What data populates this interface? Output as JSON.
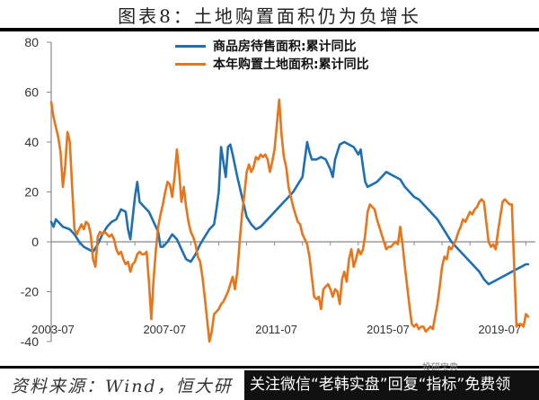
{
  "header": {
    "title": "图表8：土地购置面积仍为负增长"
  },
  "footer": {
    "source": "资料来源：Wind，恒大研",
    "banner": "关注微信“老韩实盘”回复“指标”免费领",
    "watermark": "投研宝典"
  },
  "colors": {
    "blue": "#1f6fb4",
    "orange": "#e8751a",
    "axis": "#888888"
  },
  "chart_data": {
    "type": "line",
    "title": "图表8：土地购置面积仍为负增长",
    "xlabel": "",
    "ylabel": "",
    "ylim": [
      -40,
      80
    ],
    "yticks": [
      80,
      60,
      40,
      20,
      0,
      -20,
      -40
    ],
    "xticks": [
      "2003-07",
      "2007-07",
      "2011-07",
      "2015-07",
      "2019-07"
    ],
    "grid": false,
    "legend_position": "top-center",
    "x_unit": "month index from 2003-07",
    "series": [
      {
        "name": "商品房待售面积:累计同比",
        "color": "#1f6fb4",
        "points": [
          [
            0,
            8
          ],
          [
            1,
            6
          ],
          [
            2,
            9
          ],
          [
            3,
            8
          ],
          [
            5,
            6
          ],
          [
            8,
            5
          ],
          [
            10,
            3
          ],
          [
            12,
            0
          ],
          [
            14,
            -2
          ],
          [
            16,
            -3
          ],
          [
            18,
            -4
          ],
          [
            20,
            -1
          ],
          [
            22,
            3
          ],
          [
            24,
            6
          ],
          [
            26,
            8
          ],
          [
            28,
            9
          ],
          [
            30,
            13
          ],
          [
            32,
            12
          ],
          [
            33,
            5
          ],
          [
            34,
            1
          ],
          [
            36,
            18
          ],
          [
            37,
            24
          ],
          [
            38,
            16
          ],
          [
            40,
            14
          ],
          [
            42,
            12
          ],
          [
            44,
            8
          ],
          [
            46,
            4
          ],
          [
            47,
            -2
          ],
          [
            48,
            -2
          ],
          [
            50,
            0
          ],
          [
            52,
            3
          ],
          [
            54,
            1
          ],
          [
            56,
            -3
          ],
          [
            58,
            -7
          ],
          [
            60,
            -8
          ],
          [
            62,
            -5
          ],
          [
            64,
            -1
          ],
          [
            66,
            2
          ],
          [
            68,
            5
          ],
          [
            70,
            7
          ],
          [
            71,
            13
          ],
          [
            72,
            20
          ],
          [
            73,
            38
          ],
          [
            74,
            32
          ],
          [
            75,
            26
          ],
          [
            76,
            38
          ],
          [
            77,
            39
          ],
          [
            78,
            35
          ],
          [
            80,
            26
          ],
          [
            82,
            18
          ],
          [
            84,
            10
          ],
          [
            86,
            7
          ],
          [
            88,
            5
          ],
          [
            90,
            6
          ],
          [
            92,
            8
          ],
          [
            94,
            10
          ],
          [
            96,
            12
          ],
          [
            98,
            14
          ],
          [
            100,
            16
          ],
          [
            102,
            18
          ],
          [
            104,
            20
          ],
          [
            106,
            23
          ],
          [
            108,
            26
          ],
          [
            109,
            33
          ],
          [
            110,
            40
          ],
          [
            111,
            36
          ],
          [
            112,
            33
          ],
          [
            114,
            33
          ],
          [
            116,
            34
          ],
          [
            118,
            33
          ],
          [
            120,
            29
          ],
          [
            121,
            26
          ],
          [
            122,
            33
          ],
          [
            124,
            39
          ],
          [
            126,
            40
          ],
          [
            128,
            39
          ],
          [
            130,
            38
          ],
          [
            132,
            35
          ],
          [
            133,
            37
          ],
          [
            134,
            30
          ],
          [
            135,
            24
          ],
          [
            136,
            22
          ],
          [
            138,
            23
          ],
          [
            140,
            24
          ],
          [
            142,
            26
          ],
          [
            144,
            28
          ],
          [
            146,
            27
          ],
          [
            148,
            26
          ],
          [
            150,
            25
          ],
          [
            152,
            22
          ],
          [
            154,
            20
          ],
          [
            156,
            18
          ],
          [
            158,
            17
          ],
          [
            160,
            15
          ],
          [
            162,
            13
          ],
          [
            164,
            11
          ],
          [
            166,
            9
          ],
          [
            168,
            6
          ],
          [
            170,
            3
          ],
          [
            172,
            0
          ],
          [
            174,
            -2
          ],
          [
            176,
            -4
          ],
          [
            178,
            -6
          ],
          [
            180,
            -8
          ],
          [
            182,
            -10
          ],
          [
            184,
            -12
          ],
          [
            186,
            -15
          ],
          [
            188,
            -17
          ],
          [
            190,
            -16
          ],
          [
            192,
            -15
          ],
          [
            194,
            -14
          ],
          [
            196,
            -13
          ],
          [
            198,
            -12
          ],
          [
            200,
            -11
          ],
          [
            202,
            -10
          ],
          [
            204,
            -9
          ],
          [
            205,
            -9
          ]
        ]
      },
      {
        "name": "本年购置土地面积:累计同比",
        "color": "#e8751a",
        "points": [
          [
            0,
            56
          ],
          [
            1,
            50
          ],
          [
            2,
            46
          ],
          [
            3,
            42
          ],
          [
            4,
            36
          ],
          [
            5,
            22
          ],
          [
            6,
            30
          ],
          [
            7,
            44
          ],
          [
            8,
            40
          ],
          [
            9,
            22
          ],
          [
            10,
            5
          ],
          [
            11,
            3
          ],
          [
            12,
            5
          ],
          [
            13,
            7
          ],
          [
            14,
            5
          ],
          [
            15,
            8
          ],
          [
            16,
            7
          ],
          [
            17,
            3
          ],
          [
            18,
            -7
          ],
          [
            19,
            -10
          ],
          [
            20,
            2
          ],
          [
            21,
            4
          ],
          [
            22,
            3
          ],
          [
            23,
            4
          ],
          [
            24,
            3
          ],
          [
            25,
            2
          ],
          [
            26,
            3
          ],
          [
            27,
            1
          ],
          [
            28,
            -3
          ],
          [
            29,
            -5
          ],
          [
            30,
            -4
          ],
          [
            31,
            -7
          ],
          [
            32,
            -9
          ],
          [
            33,
            -8
          ],
          [
            34,
            -12
          ],
          [
            35,
            -9
          ],
          [
            36,
            -8
          ],
          [
            37,
            -5
          ],
          [
            38,
            -4
          ],
          [
            39,
            -5
          ],
          [
            40,
            -5
          ],
          [
            41,
            -4
          ],
          [
            42,
            -16
          ],
          [
            43,
            -31
          ],
          [
            44,
            -15
          ],
          [
            45,
            -3
          ],
          [
            46,
            6
          ],
          [
            47,
            11
          ],
          [
            48,
            15
          ],
          [
            49,
            20
          ],
          [
            50,
            24
          ],
          [
            51,
            23
          ],
          [
            52,
            18
          ],
          [
            53,
            26
          ],
          [
            54,
            37
          ],
          [
            55,
            28
          ],
          [
            56,
            16
          ],
          [
            57,
            22
          ],
          [
            58,
            14
          ],
          [
            59,
            8
          ],
          [
            60,
            4
          ],
          [
            61,
            2
          ],
          [
            62,
            -1
          ],
          [
            63,
            -6
          ],
          [
            64,
            -8
          ],
          [
            65,
            -14
          ],
          [
            66,
            -22
          ],
          [
            67,
            -31
          ],
          [
            68,
            -40
          ],
          [
            69,
            -36
          ],
          [
            70,
            -29
          ],
          [
            71,
            -28
          ],
          [
            72,
            -27
          ],
          [
            73,
            -25
          ],
          [
            74,
            -24
          ],
          [
            75,
            -22
          ],
          [
            76,
            -20
          ],
          [
            77,
            -17
          ],
          [
            78,
            -14
          ],
          [
            79,
            -19
          ],
          [
            80,
            -12
          ],
          [
            81,
            0
          ],
          [
            82,
            11
          ],
          [
            83,
            19
          ],
          [
            84,
            28
          ],
          [
            85,
            31
          ],
          [
            86,
            28
          ],
          [
            87,
            30
          ],
          [
            88,
            34
          ],
          [
            89,
            33
          ],
          [
            90,
            35
          ],
          [
            91,
            34
          ],
          [
            92,
            35
          ],
          [
            93,
            33
          ],
          [
            94,
            28
          ],
          [
            95,
            32
          ],
          [
            96,
            37
          ],
          [
            97,
            47
          ],
          [
            98,
            57
          ],
          [
            99,
            43
          ],
          [
            100,
            34
          ],
          [
            101,
            30
          ],
          [
            102,
            22
          ],
          [
            103,
            18
          ],
          [
            104,
            14
          ],
          [
            105,
            11
          ],
          [
            106,
            8
          ],
          [
            107,
            7
          ],
          [
            108,
            3
          ],
          [
            109,
            1
          ],
          [
            110,
            -1
          ],
          [
            111,
            -6
          ],
          [
            112,
            -14
          ],
          [
            113,
            -22
          ],
          [
            114,
            -23
          ],
          [
            115,
            -22
          ],
          [
            116,
            -27
          ],
          [
            117,
            -19
          ],
          [
            118,
            -18
          ],
          [
            119,
            -17
          ],
          [
            120,
            -19
          ],
          [
            121,
            -22
          ],
          [
            122,
            -19
          ],
          [
            123,
            -20
          ],
          [
            124,
            -25
          ],
          [
            125,
            -15
          ],
          [
            126,
            -12
          ],
          [
            127,
            -16
          ],
          [
            128,
            -7
          ],
          [
            129,
            -3
          ],
          [
            130,
            -10
          ],
          [
            131,
            -7
          ],
          [
            132,
            -3
          ],
          [
            133,
            -5
          ],
          [
            134,
            -3
          ],
          [
            135,
            3
          ],
          [
            136,
            12
          ],
          [
            137,
            15
          ],
          [
            138,
            14
          ],
          [
            139,
            13
          ],
          [
            140,
            9
          ],
          [
            141,
            6
          ],
          [
            142,
            3
          ],
          [
            143,
            0
          ],
          [
            144,
            -3
          ],
          [
            145,
            -2
          ],
          [
            146,
            -2
          ],
          [
            147,
            -1
          ],
          [
            148,
            0
          ],
          [
            149,
            -1
          ],
          [
            150,
            6
          ],
          [
            151,
            -1
          ],
          [
            152,
            -10
          ],
          [
            153,
            -18
          ],
          [
            154,
            -26
          ],
          [
            155,
            -33
          ],
          [
            156,
            -34
          ],
          [
            157,
            -33
          ],
          [
            158,
            -35
          ],
          [
            159,
            -34
          ],
          [
            160,
            -34
          ],
          [
            161,
            -36
          ],
          [
            162,
            -35
          ],
          [
            163,
            -34
          ],
          [
            164,
            -35
          ],
          [
            165,
            -30
          ],
          [
            166,
            -25
          ],
          [
            167,
            -18
          ],
          [
            168,
            -10
          ],
          [
            169,
            -6
          ],
          [
            170,
            -7
          ],
          [
            171,
            -2
          ],
          [
            172,
            -3
          ],
          [
            173,
            -1
          ],
          [
            174,
            1
          ],
          [
            175,
            4
          ],
          [
            176,
            6
          ],
          [
            177,
            9
          ],
          [
            178,
            8
          ],
          [
            179,
            10
          ],
          [
            180,
            12
          ],
          [
            181,
            11
          ],
          [
            182,
            13
          ],
          [
            183,
            14
          ],
          [
            184,
            16
          ],
          [
            185,
            17
          ],
          [
            186,
            16
          ],
          [
            187,
            8
          ],
          [
            188,
            0
          ],
          [
            189,
            -2
          ],
          [
            190,
            -1
          ],
          [
            191,
            -3
          ],
          [
            192,
            4
          ],
          [
            193,
            10
          ],
          [
            194,
            16
          ],
          [
            195,
            17
          ],
          [
            196,
            16
          ],
          [
            197,
            15
          ],
          [
            198,
            15
          ],
          [
            199,
            -10
          ],
          [
            200,
            -34
          ],
          [
            201,
            -33
          ],
          [
            202,
            -33
          ],
          [
            203,
            -34
          ],
          [
            204,
            -29
          ],
          [
            205,
            -30
          ]
        ]
      }
    ]
  }
}
